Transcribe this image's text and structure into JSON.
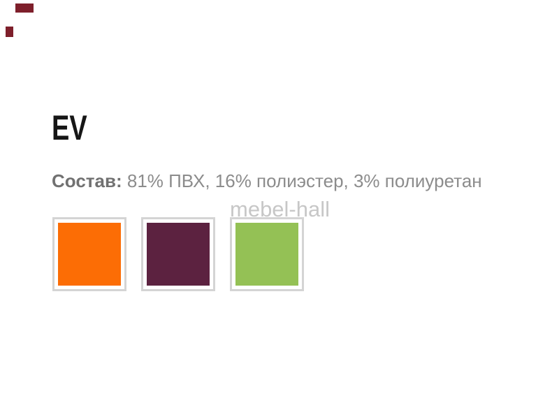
{
  "page": {
    "background": "#ffffff"
  },
  "header": {
    "title": "EV",
    "title_color": "#161616"
  },
  "composition": {
    "label": "Состав:",
    "value": "81% ПВХ, 16% полиэстер, 3% полиуретан",
    "label_color": "#717171",
    "value_color": "#8c8c8c"
  },
  "watermark": {
    "text": "mebel-hall",
    "color": "#c7c7c7"
  },
  "swatches": {
    "border_color": "#d4d4d4",
    "items": [
      {
        "name": "orange",
        "color": "#fc6d05"
      },
      {
        "name": "purple",
        "color": "#5c2240"
      },
      {
        "name": "green",
        "color": "#94c155"
      }
    ]
  },
  "artifacts": {
    "color": "#7e1f2b"
  }
}
